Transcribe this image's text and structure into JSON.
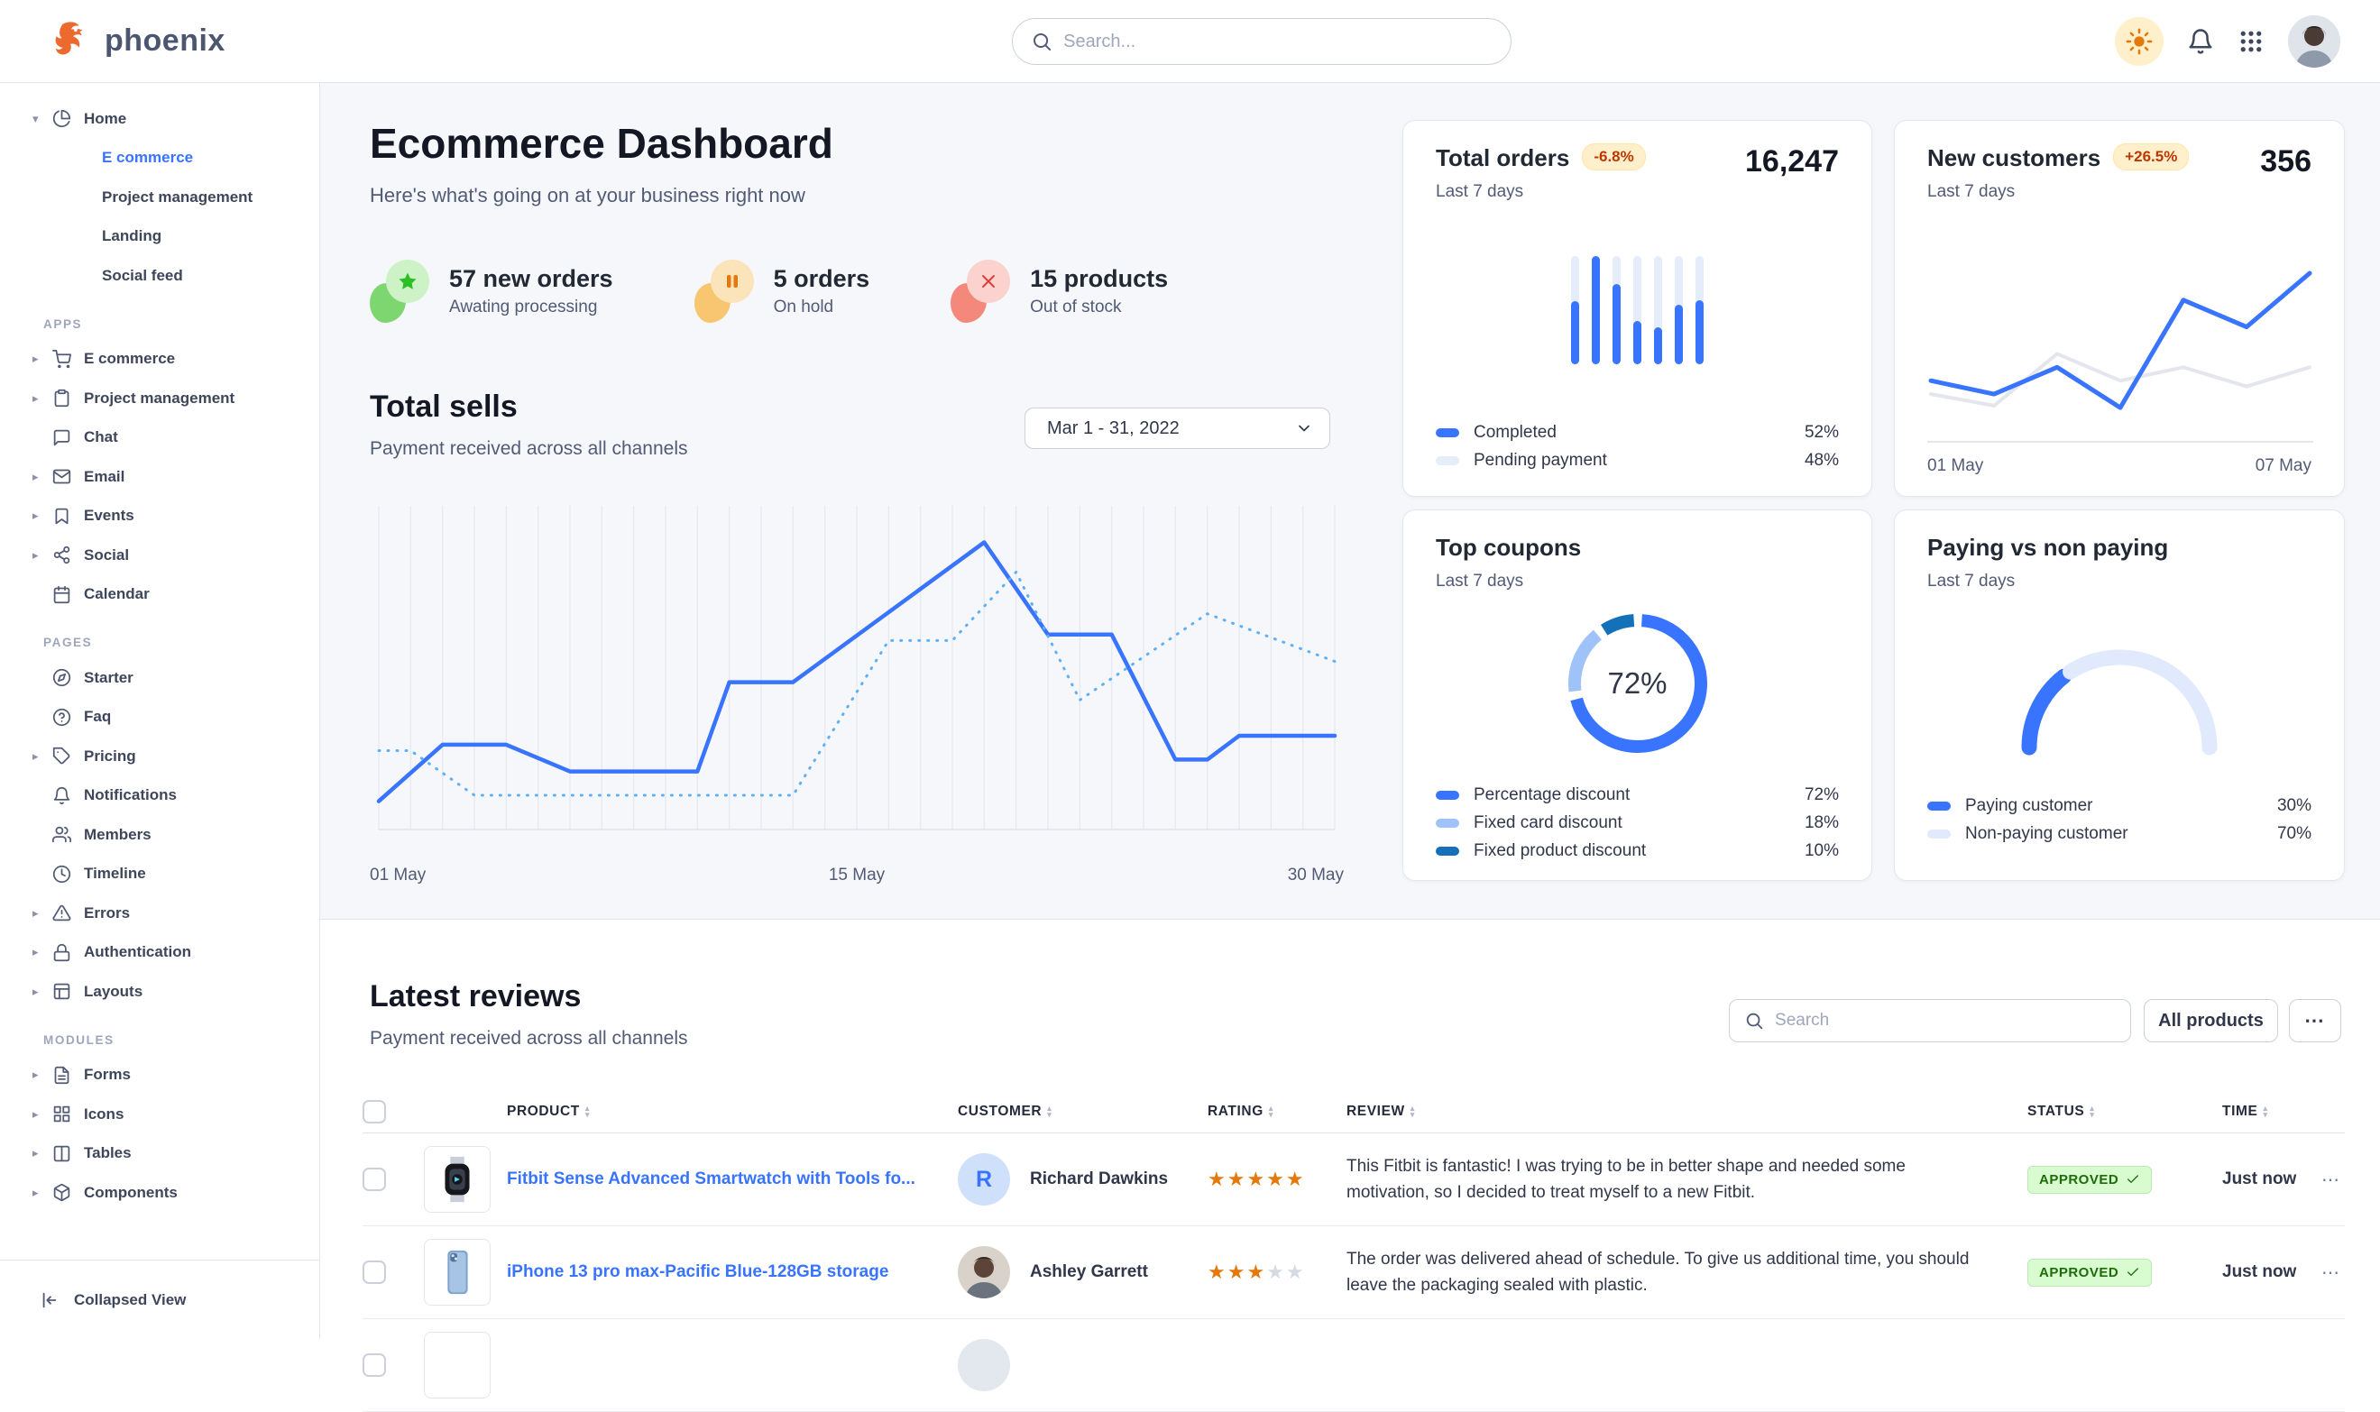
{
  "brand": {
    "name": "phoenix"
  },
  "header": {
    "search_placeholder": "Search...",
    "icons": [
      "sun-icon",
      "bell-icon",
      "apps-grid-icon",
      "avatar"
    ]
  },
  "sidebar": {
    "sections": [
      {
        "heading": "",
        "items": [
          {
            "label": "Home",
            "icon": "pie",
            "caret": "down"
          },
          {
            "label": "E commerce",
            "child": true,
            "active": true
          },
          {
            "label": "Project management",
            "child": true
          },
          {
            "label": "Landing",
            "child": true
          },
          {
            "label": "Social feed",
            "child": true
          }
        ]
      },
      {
        "heading": "APPS",
        "items": [
          {
            "label": "E commerce",
            "icon": "cart",
            "caret": "right"
          },
          {
            "label": "Project management",
            "icon": "clipboard",
            "caret": "right"
          },
          {
            "label": "Chat",
            "icon": "message"
          },
          {
            "label": "Email",
            "icon": "mail",
            "caret": "right"
          },
          {
            "label": "Events",
            "icon": "bookmark",
            "caret": "right"
          },
          {
            "label": "Social",
            "icon": "share",
            "caret": "right"
          },
          {
            "label": "Calendar",
            "icon": "calendar"
          }
        ]
      },
      {
        "heading": "PAGES",
        "items": [
          {
            "label": "Starter",
            "icon": "compass"
          },
          {
            "label": "Faq",
            "icon": "help"
          },
          {
            "label": "Pricing",
            "icon": "tag",
            "caret": "right"
          },
          {
            "label": "Notifications",
            "icon": "bell"
          },
          {
            "label": "Members",
            "icon": "users"
          },
          {
            "label": "Timeline",
            "icon": "clock"
          },
          {
            "label": "Errors",
            "icon": "alert",
            "caret": "right"
          },
          {
            "label": "Authentication",
            "icon": "lock",
            "caret": "right"
          },
          {
            "label": "Layouts",
            "icon": "layout",
            "caret": "right"
          }
        ]
      },
      {
        "heading": "MODULES",
        "items": [
          {
            "label": "Forms",
            "icon": "file",
            "caret": "right"
          },
          {
            "label": "Icons",
            "icon": "grid",
            "caret": "right"
          },
          {
            "label": "Tables",
            "icon": "columns",
            "caret": "right"
          },
          {
            "label": "Components",
            "icon": "package",
            "caret": "right"
          }
        ]
      }
    ],
    "footer": {
      "label": "Collapsed View"
    }
  },
  "page": {
    "title": "Ecommerce Dashboard",
    "subtitle": "Here's what's going on at your business right now"
  },
  "stats": [
    {
      "value": "57 new orders",
      "label": "Awating processing",
      "icon": "star",
      "blob": "#7ed670",
      "circle": "#cdf2c6",
      "glyph": "#2bbf25"
    },
    {
      "value": "5 orders",
      "label": "On hold",
      "icon": "pause",
      "blob": "#f8c571",
      "circle": "#fbe3ba",
      "glyph": "#e5780b"
    },
    {
      "value": "15 products",
      "label": "Out of stock",
      "icon": "x",
      "blob": "#f4897b",
      "circle": "#fbd2cd",
      "glyph": "#d8413f"
    }
  ],
  "total_sells": {
    "title": "Total sells",
    "subtitle": "Payment received across all channels",
    "date_range": "Mar 1 - 31, 2022"
  },
  "chart_data": [
    {
      "id": "total-sells",
      "type": "line",
      "title": "Total sells",
      "x_labels": [
        "01 May",
        "15 May",
        "30 May"
      ],
      "x_range": [
        0,
        30
      ],
      "ylim": [
        0,
        100
      ],
      "grid": "vertical",
      "series": [
        {
          "name": "current",
          "style": "solid",
          "color": "#3874ff",
          "points": [
            [
              0,
              8
            ],
            [
              2,
              27
            ],
            [
              4,
              27
            ],
            [
              6,
              18
            ],
            [
              10,
              18
            ],
            [
              11,
              48
            ],
            [
              13,
              48
            ],
            [
              19,
              95
            ],
            [
              21,
              64
            ],
            [
              23,
              64
            ],
            [
              25,
              22
            ],
            [
              26,
              22
            ],
            [
              27,
              30
            ],
            [
              30,
              30
            ]
          ]
        },
        {
          "name": "previous",
          "style": "dotted",
          "color": "#5fb0f4",
          "points": [
            [
              0,
              25
            ],
            [
              1,
              25
            ],
            [
              3,
              10
            ],
            [
              13,
              10
            ],
            [
              16,
              62
            ],
            [
              18,
              62
            ],
            [
              20,
              85
            ],
            [
              22,
              42
            ],
            [
              26,
              71
            ],
            [
              30,
              55
            ]
          ]
        }
      ]
    },
    {
      "id": "total-orders-bars",
      "type": "bar",
      "title": "Total orders",
      "values_pct_filled": [
        58,
        100,
        74,
        40,
        34,
        55,
        59
      ],
      "fill_color": "#3874ff",
      "track_color": "#e5edfb"
    },
    {
      "id": "new-customers",
      "type": "line",
      "title": "New customers",
      "x_labels": [
        "01 May",
        "07 May"
      ],
      "ylim": [
        0,
        100
      ],
      "series": [
        {
          "name": "previous",
          "color": "#e3e6ed",
          "values": [
            22,
            16,
            43,
            29,
            36,
            26,
            36
          ]
        },
        {
          "name": "current",
          "color": "#3874ff",
          "values": [
            29,
            22,
            36,
            15,
            71,
            57,
            85
          ]
        }
      ]
    },
    {
      "id": "top-coupons",
      "type": "donut",
      "title": "Top coupons",
      "center_label": "72%",
      "segments": [
        {
          "label": "Percentage discount",
          "value": 72,
          "color": "#3874ff"
        },
        {
          "label": "Fixed card discount",
          "value": 18,
          "color": "#9fc2f9"
        },
        {
          "label": "Fixed product discount",
          "value": 10,
          "color": "#1470b8"
        }
      ]
    },
    {
      "id": "paying-gauge",
      "type": "gauge",
      "title": "Paying vs non paying",
      "segments": [
        {
          "label": "Paying customer",
          "value": 30,
          "color": "#3874ff"
        },
        {
          "label": "Non-paying customer",
          "value": 70,
          "color": "#e0eafc"
        }
      ]
    }
  ],
  "cards": {
    "total_orders": {
      "title": "Total orders",
      "badge": "-6.8%",
      "period": "Last 7 days",
      "value": "16,247",
      "legend": [
        {
          "label": "Completed",
          "value": "52%",
          "color": "#3874ff"
        },
        {
          "label": "Pending payment",
          "value": "48%",
          "color": "#e5edfb"
        }
      ]
    },
    "new_customers": {
      "title": "New customers",
      "badge": "+26.5%",
      "period": "Last 7 days",
      "value": "356",
      "x_labels": [
        "01 May",
        "07 May"
      ]
    },
    "top_coupons": {
      "title": "Top coupons",
      "period": "Last 7 days",
      "center_label": "72%",
      "legend": [
        {
          "label": "Percentage discount",
          "value": "72%",
          "color": "#3874ff"
        },
        {
          "label": "Fixed card discount",
          "value": "18%",
          "color": "#9fc2f9"
        },
        {
          "label": "Fixed product discount",
          "value": "10%",
          "color": "#1470b8"
        }
      ]
    },
    "paying": {
      "title": "Paying vs non paying",
      "period": "Last 7 days",
      "legend": [
        {
          "label": "Paying customer",
          "value": "30%",
          "color": "#3874ff"
        },
        {
          "label": "Non-paying customer",
          "value": "70%",
          "color": "#e0eafc"
        }
      ]
    }
  },
  "reviews": {
    "title": "Latest reviews",
    "subtitle": "Payment received across all channels",
    "search_placeholder": "Search",
    "filter_button": "All products",
    "menu_button": "...",
    "columns": [
      "PRODUCT",
      "CUSTOMER",
      "RATING",
      "REVIEW",
      "STATUS",
      "TIME"
    ],
    "rows": [
      {
        "product": "Fitbit Sense Advanced Smartwatch with Tools fo...",
        "thumb": "watch",
        "customer": "Richard Dawkins",
        "avatar_type": "initial",
        "avatar_text": "R",
        "rating": 5,
        "review": "This Fitbit is fantastic! I was trying to be in better shape and needed some motivation, so I decided to treat myself to a new Fitbit.",
        "status": "APPROVED",
        "time": "Just now"
      },
      {
        "product": "iPhone 13 pro max-Pacific Blue-128GB storage",
        "thumb": "phone",
        "customer": "Ashley Garrett",
        "avatar_type": "photo",
        "avatar_text": "",
        "rating": 3,
        "review": "The order was delivered ahead of schedule. To give us additional time, you should leave the packaging sealed with plastic.",
        "status": "APPROVED",
        "time": "Just now"
      },
      {
        "partial": true,
        "product": "",
        "thumb": "blank",
        "customer": "",
        "avatar_type": "photo",
        "avatar_text": "",
        "rating": 0,
        "review": "",
        "status": "",
        "time": ""
      }
    ]
  }
}
